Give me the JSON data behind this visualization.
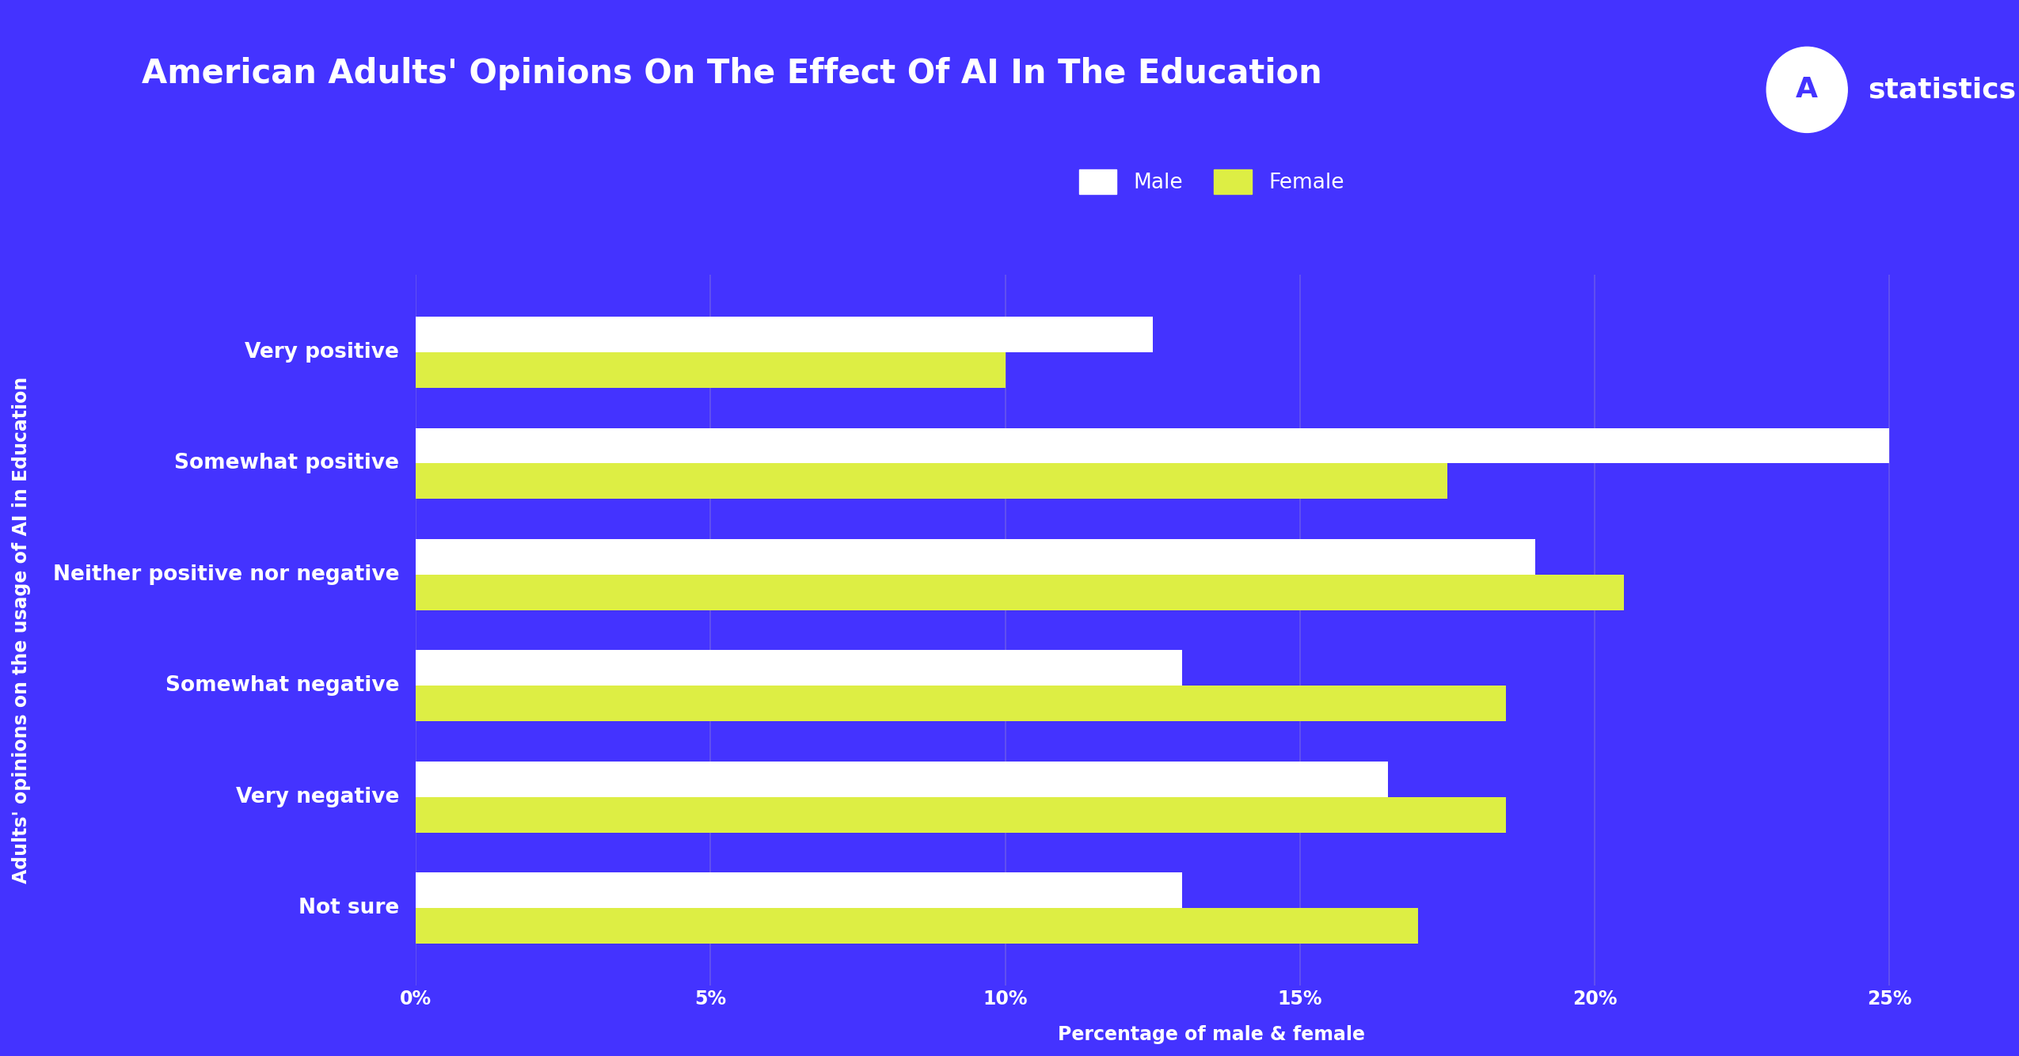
{
  "title": "American Adults' Opinions On The Effect Of AI In The Education",
  "ylabel": "Adults' opinions on the usage of AI in Education",
  "xlabel": "Percentage of male & female",
  "background_color": "#4433FF",
  "categories": [
    "Not sure",
    "Very negative",
    "Somewhat negative",
    "Neither positive nor negative",
    "Somewhat positive",
    "Very positive"
  ],
  "male_values": [
    13.0,
    16.5,
    13.0,
    19.0,
    25.0,
    12.5
  ],
  "female_values": [
    17.0,
    18.5,
    18.5,
    20.5,
    17.5,
    10.0
  ],
  "male_color": "#FFFFFF",
  "female_color": "#DDEE44",
  "bar_height": 0.32,
  "xlim": [
    0,
    27
  ],
  "xticks": [
    0,
    5,
    10,
    15,
    20,
    25
  ],
  "xtick_labels": [
    "0%",
    "5%",
    "10%",
    "15%",
    "20%",
    "25%"
  ],
  "title_fontsize": 30,
  "label_fontsize": 17,
  "tick_fontsize": 17,
  "legend_fontsize": 19,
  "category_fontsize": 19,
  "text_color": "#FFFFFF",
  "grid_color": "#6655EE"
}
